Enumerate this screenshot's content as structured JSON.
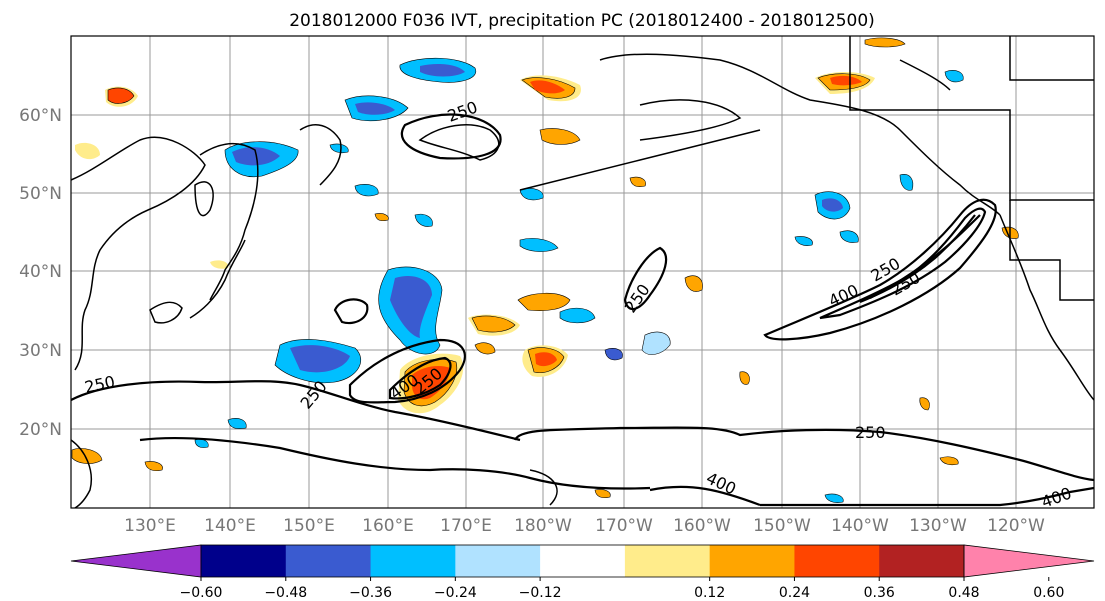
{
  "title": "2018012000 F036 IVT, precipitation PC (2018012400 - 2018012500)",
  "map": {
    "lat_labels": [
      "60°N",
      "50°N",
      "40°N",
      "30°N",
      "20°N"
    ],
    "lon_labels": [
      "130°E",
      "140°E",
      "150°E",
      "160°E",
      "170°E",
      "180°W",
      "170°W",
      "160°W",
      "150°W",
      "140°W",
      "130°W",
      "120°W"
    ],
    "ivt_contour_labels": [
      "250",
      "250",
      "250",
      "250",
      "250",
      "250",
      "250",
      "250",
      "400",
      "400",
      "400",
      "400"
    ]
  },
  "colorbar": {
    "tick_labels": [
      "−0.60",
      "−0.48",
      "−0.36",
      "−0.24",
      "−0.12",
      "0.12",
      "0.24",
      "0.36",
      "0.48",
      "0.60"
    ],
    "colors": [
      "#9932cc",
      "#00008b",
      "#3a5bd0",
      "#00bfff",
      "#b0e2ff",
      "#ffffff",
      "#ffec8b",
      "#ffa500",
      "#ff4500",
      "#b22222",
      "#ff82ab"
    ]
  },
  "fill_colors": {
    "blue_strong": "#3a5bd0",
    "blue": "#00bfff",
    "blue_light": "#b0e2ff",
    "yellow": "#ffec8b",
    "orange": "#ffa500",
    "red": "#ff4500"
  }
}
